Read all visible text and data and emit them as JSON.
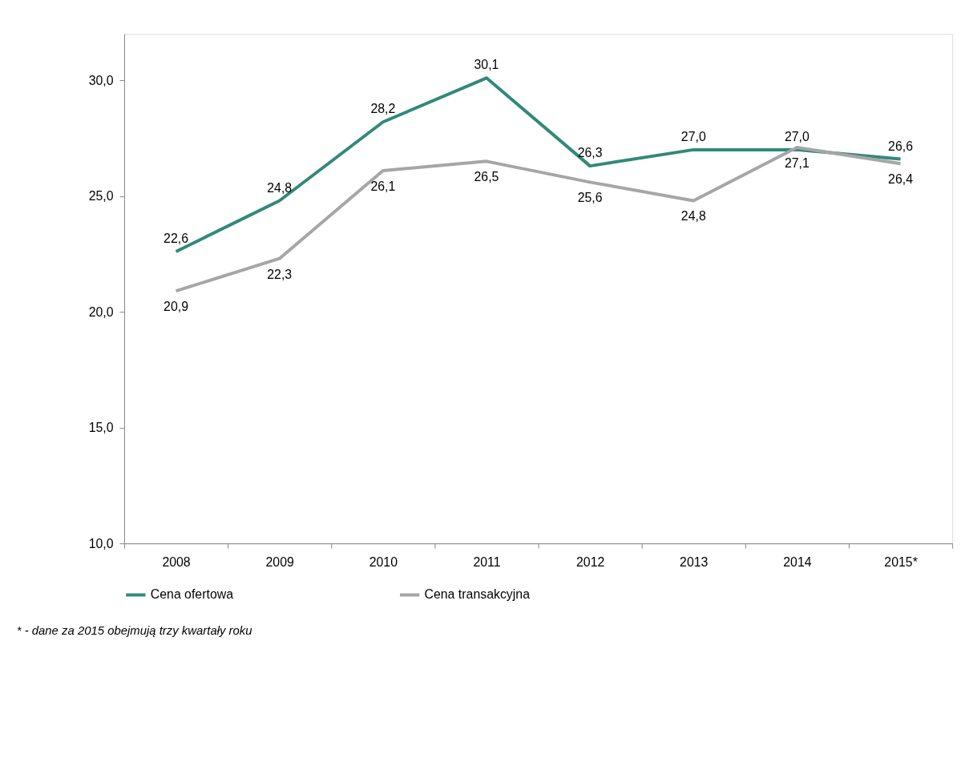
{
  "chart_data": {
    "type": "line",
    "categories": [
      "2008",
      "2009",
      "2010",
      "2011",
      "2012",
      "2013",
      "2014",
      "2015*"
    ],
    "series": [
      {
        "name": "Cena ofertowa",
        "color": "#31897a",
        "values": [
          22.6,
          24.8,
          28.2,
          30.1,
          26.3,
          27.0,
          27.0,
          26.6
        ],
        "value_labels": [
          "22,6",
          "24,8",
          "28,2",
          "30,1",
          "26,3",
          "27,0",
          "27,0",
          "26,6"
        ]
      },
      {
        "name": "Cena transakcyjna",
        "color": "#a6a6a6",
        "values": [
          20.9,
          22.3,
          26.1,
          26.5,
          25.6,
          24.8,
          27.1,
          26.4
        ],
        "value_labels": [
          "20,9",
          "22,3",
          "26,1",
          "26,5",
          "25,6",
          "24,8",
          "27,1",
          "26,4"
        ]
      }
    ],
    "ylim": [
      10,
      32
    ],
    "yticks": [
      {
        "value": 10,
        "label": "10,0"
      },
      {
        "value": 15,
        "label": "15,0"
      },
      {
        "value": 20,
        "label": "20,0"
      },
      {
        "value": 25,
        "label": "25,0"
      },
      {
        "value": 30,
        "label": "30,0"
      }
    ],
    "grid": false,
    "legend": "bottom",
    "marker": "none",
    "line_style": "solid",
    "annotations": [
      "* - dane za 2015 obejmują trzy kwartały roku"
    ]
  }
}
